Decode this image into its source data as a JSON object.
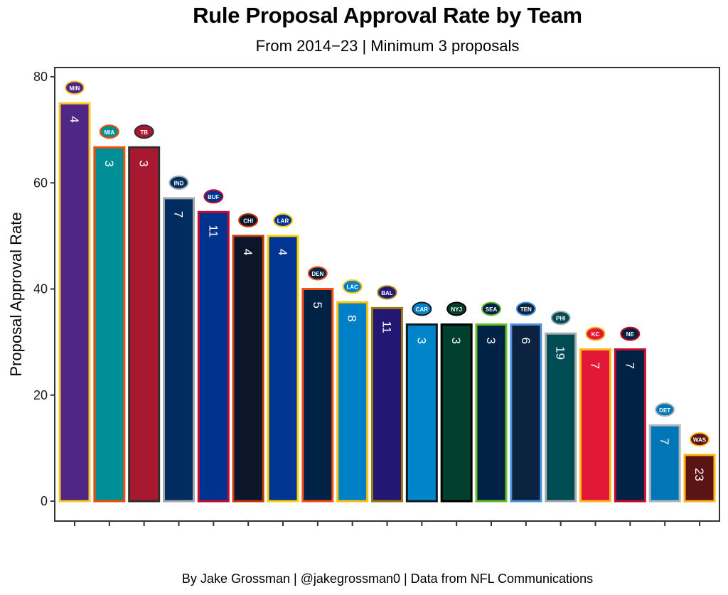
{
  "chart_data": {
    "type": "bar",
    "title": "Rule Proposal Approval Rate by Team",
    "subtitle": "From 2014−23 | Minimum 3 proposals",
    "caption": "By Jake Grossman | @jakegrossman0 | Data from NFL Communications",
    "xlabel": "",
    "ylabel": "Proposal Approval Rate",
    "ylim": [
      0,
      80
    ],
    "yticks": [
      0,
      20,
      40,
      60,
      80
    ],
    "grid": false,
    "legend": "none",
    "bar_label_meaning": "number of proposals",
    "categories": [
      "MIN",
      "MIA",
      "TB",
      "IND",
      "BUF",
      "CHI",
      "LAR",
      "DEN",
      "LAC",
      "BAL",
      "CAR",
      "NYJ",
      "SEA",
      "TEN",
      "PHI",
      "KC",
      "NE",
      "DET",
      "WAS"
    ],
    "values": [
      75.0,
      66.7,
      66.7,
      57.1,
      54.5,
      50.0,
      50.0,
      40.0,
      37.5,
      36.4,
      33.3,
      33.3,
      33.3,
      33.3,
      31.6,
      28.6,
      28.6,
      14.3,
      8.7
    ],
    "proposals": [
      4,
      3,
      3,
      7,
      11,
      4,
      4,
      5,
      8,
      11,
      3,
      3,
      3,
      6,
      19,
      7,
      7,
      7,
      23
    ],
    "bars": [
      {
        "team": "MIN",
        "logo": "vikings-logo",
        "fill": "#4F2683",
        "outline": "#FFC62F"
      },
      {
        "team": "MIA",
        "logo": "dolphins-logo",
        "fill": "#008E97",
        "outline": "#FC4C02"
      },
      {
        "team": "TB",
        "logo": "buccaneers-logo",
        "fill": "#A71930",
        "outline": "#322F2B"
      },
      {
        "team": "IND",
        "logo": "colts-logo",
        "fill": "#002C5F",
        "outline": "#A2AAAD"
      },
      {
        "team": "BUF",
        "logo": "bills-logo",
        "fill": "#00338D",
        "outline": "#C60C30"
      },
      {
        "team": "CHI",
        "logo": "bears-logo",
        "fill": "#0B162A",
        "outline": "#C83803"
      },
      {
        "team": "LAR",
        "logo": "rams-logo",
        "fill": "#003594",
        "outline": "#FFD100"
      },
      {
        "team": "DEN",
        "logo": "broncos-logo",
        "fill": "#002244",
        "outline": "#FB4F14"
      },
      {
        "team": "LAC",
        "logo": "chargers-logo",
        "fill": "#0080C6",
        "outline": "#FFC20E"
      },
      {
        "team": "BAL",
        "logo": "ravens-logo",
        "fill": "#241773",
        "outline": "#9E7C0C"
      },
      {
        "team": "CAR",
        "logo": "panthers-logo",
        "fill": "#0085CA",
        "outline": "#101820"
      },
      {
        "team": "NYJ",
        "logo": "jets-logo",
        "fill": "#003F2D",
        "outline": "#000000"
      },
      {
        "team": "SEA",
        "logo": "seahawks-logo",
        "fill": "#002244",
        "outline": "#69BE28"
      },
      {
        "team": "TEN",
        "logo": "titans-logo",
        "fill": "#0C2340",
        "outline": "#4B92DB"
      },
      {
        "team": "PHI",
        "logo": "eagles-logo",
        "fill": "#004C54",
        "outline": "#A5ACAF"
      },
      {
        "team": "KC",
        "logo": "chiefs-logo",
        "fill": "#E31837",
        "outline": "#FFB81C"
      },
      {
        "team": "NE",
        "logo": "patriots-logo",
        "fill": "#002244",
        "outline": "#C60C30"
      },
      {
        "team": "DET",
        "logo": "lions-logo",
        "fill": "#0076B6",
        "outline": "#B0B7BC"
      },
      {
        "team": "WAS",
        "logo": "commanders-logo",
        "fill": "#5A1414",
        "outline": "#FFB612"
      }
    ]
  }
}
